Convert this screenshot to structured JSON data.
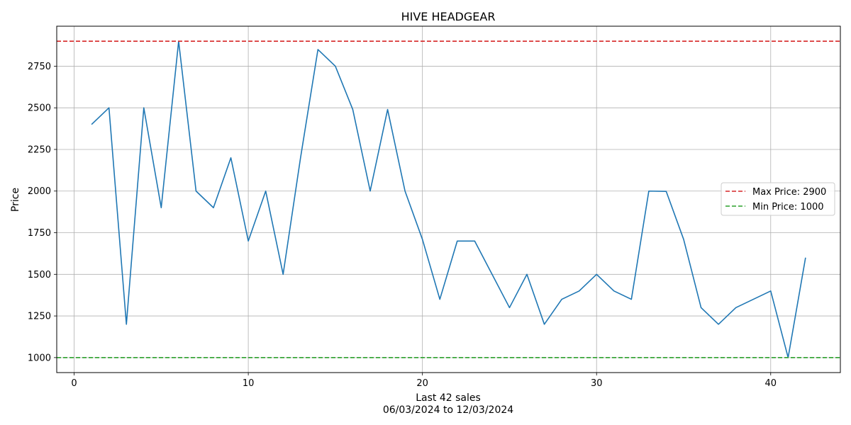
{
  "chart_data": {
    "type": "line",
    "title": "HIVE HEADGEAR",
    "xlabel": "Last 42 sales",
    "xlabel_sub": "06/03/2024 to 12/03/2024",
    "ylabel": "Price",
    "xlim": [
      -1,
      44
    ],
    "ylim": [
      910,
      2990
    ],
    "xticks": [
      0,
      10,
      20,
      30,
      40
    ],
    "yticks": [
      1000,
      1250,
      1500,
      1750,
      2000,
      2250,
      2500,
      2750
    ],
    "grid": true,
    "legend_position": "center-right",
    "series": [
      {
        "color": "#1f77b4",
        "x": [
          1,
          2,
          3,
          4,
          5,
          6,
          7,
          8,
          9,
          10,
          11,
          12,
          13,
          14,
          15,
          16,
          17,
          18,
          19,
          20,
          21,
          22,
          23,
          24,
          25,
          26,
          27,
          28,
          29,
          30,
          31,
          32,
          33,
          34,
          35,
          36,
          37,
          38,
          39,
          40,
          41,
          42
        ],
        "values": [
          2400,
          2500,
          1200,
          2500,
          1900,
          2900,
          2000,
          1900,
          2200,
          1700,
          2000,
          1500,
          2200,
          2850,
          2750,
          2490,
          2000,
          2490,
          2000,
          1710,
          1350,
          1700,
          1700,
          1500,
          1300,
          1500,
          1200,
          1350,
          1400,
          1500,
          1400,
          1350,
          2000,
          1998,
          1710,
          1300,
          1200,
          1300,
          1350,
          1400,
          1000,
          1600
        ]
      }
    ],
    "reference_lines": [
      {
        "name": "Max Price: 2900",
        "value": 2900,
        "color": "#d62728",
        "style": "dashed"
      },
      {
        "name": "Min Price: 1000",
        "value": 1000,
        "color": "#2ca02c",
        "style": "dashed"
      }
    ]
  }
}
